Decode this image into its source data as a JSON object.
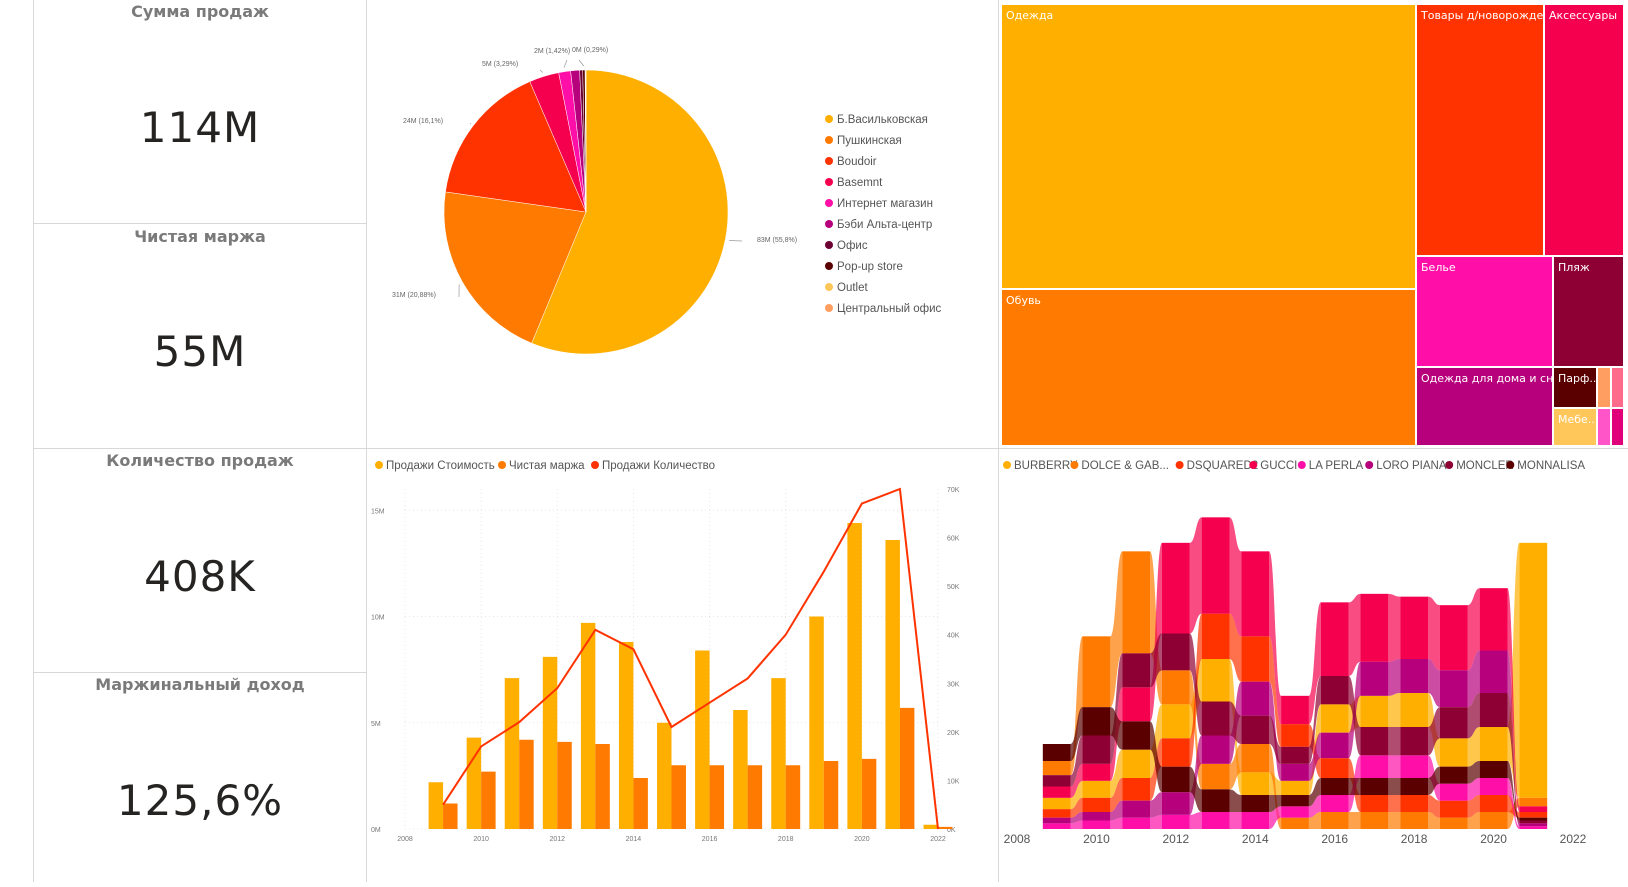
{
  "kpis": [
    {
      "title": "Сумма продаж",
      "value": "114M"
    },
    {
      "title": "Чистая маржа",
      "value": "55M"
    },
    {
      "title": "Количество продаж",
      "value": "408K"
    },
    {
      "title": "Маржинальный доход",
      "value": "125,6%"
    }
  ],
  "colors": {
    "c1": "#FFAF00",
    "c2": "#FF7A00",
    "c3": "#FF3300",
    "c4": "#F5004F",
    "c5": "#FF0FA8",
    "c6": "#B7007C",
    "c7": "#6B0033",
    "c8": "#5A0000",
    "c9": "#FFC659",
    "c10": "#FF9E60"
  },
  "chart_data": [
    {
      "type": "pie",
      "slices": [
        {
          "name": "Б.Васильковская",
          "value": 83,
          "label": "83M (55,8%)",
          "color": "#FFAF00"
        },
        {
          "name": "Пушкинская",
          "value": 31,
          "label": "31M (20,88%)",
          "color": "#FF7A00"
        },
        {
          "name": "Boudoir",
          "value": 24,
          "label": "24M (16,1%)",
          "color": "#FF3300"
        },
        {
          "name": "Basemnt",
          "value": 5,
          "label": "5M (3,29%)",
          "color": "#F5004F"
        },
        {
          "name": "Интернет магазин",
          "value": 2,
          "label": "2M (1,42%)",
          "color": "#FF0FA8"
        },
        {
          "name": "Бэби Альта-центр",
          "value": 1.5,
          "label": "",
          "color": "#B7007C"
        },
        {
          "name": "Офис",
          "value": 0.5,
          "label": "",
          "color": "#6B0033"
        },
        {
          "name": "Pop-up store",
          "value": 0.4,
          "label": "0M (0,29%)",
          "color": "#5A0000"
        },
        {
          "name": "Outlet",
          "value": 0.1,
          "label": "",
          "color": "#FFC659"
        },
        {
          "name": "Центральный офис",
          "value": 0.05,
          "label": "",
          "color": "#FF9E60"
        }
      ],
      "legend_position": "right"
    },
    {
      "type": "treemap",
      "items": [
        {
          "name": "Одежда",
          "color": "#FFAF00"
        },
        {
          "name": "Обувь",
          "color": "#FF7A00"
        },
        {
          "name": "Товары д/новорожде...",
          "color": "#FF3300"
        },
        {
          "name": "Аксессуары",
          "color": "#F5004F"
        },
        {
          "name": "Белье",
          "color": "#FF0FA8"
        },
        {
          "name": "Пляж",
          "color": "#8E0033"
        },
        {
          "name": "Одежда для дома и сна",
          "color": "#B7007C"
        },
        {
          "name": "Парф...",
          "color": "#5A0000"
        },
        {
          "name": "Мебе...",
          "color": "#FFC659"
        }
      ]
    },
    {
      "type": "bar",
      "legend": [
        "Продажи Стоимость",
        "Чистая маржа",
        "Продажи Количество"
      ],
      "legend_colors": [
        "#FFAF00",
        "#FF7A00",
        "#FF3300"
      ],
      "x": [
        2009,
        2010,
        2011,
        2012,
        2013,
        2014,
        2015,
        2016,
        2017,
        2018,
        2019,
        2020,
        2021,
        2022
      ],
      "x_ticks": [
        "2008",
        "2010",
        "2012",
        "2014",
        "2016",
        "2018",
        "2020",
        "2022"
      ],
      "x_range": [
        2008,
        2022
      ],
      "series": [
        {
          "name": "Продажи Стоимость",
          "kind": "bar",
          "values": [
            2.2,
            4.3,
            7.1,
            8.1,
            9.7,
            8.8,
            5.0,
            8.4,
            5.6,
            7.1,
            10.0,
            14.4,
            13.6,
            0.2
          ]
        },
        {
          "name": "Чистая маржа",
          "kind": "bar",
          "values": [
            1.2,
            2.7,
            4.2,
            4.1,
            4.0,
            2.4,
            3.0,
            3.0,
            3.0,
            3.0,
            3.2,
            3.3,
            5.7,
            0.1
          ]
        },
        {
          "name": "Продажи Количество",
          "kind": "line",
          "values": [
            5,
            17,
            22,
            29,
            41,
            37,
            21,
            26,
            31,
            40,
            53,
            67,
            70,
            0
          ]
        }
      ],
      "y_left_ticks": [
        "0M",
        "5M",
        "10M",
        "15M"
      ],
      "y_left_range": [
        0,
        16
      ],
      "y_right_ticks": [
        "0K",
        "10K",
        "20K",
        "30K",
        "40K",
        "50K",
        "60K",
        "70K"
      ],
      "y_right_range": [
        0,
        70
      ]
    },
    {
      "type": "area",
      "subtype": "ribbon",
      "legend": [
        "BURBERRY",
        "DOLCE & GAB...",
        "DSQUARED2",
        "GUCCI",
        "LA PERLA",
        "LORO PIANA",
        "MONCLER",
        "MONNALISA"
      ],
      "legend_colors": [
        "#FFAF00",
        "#FF7A00",
        "#FF3300",
        "#F5004F",
        "#FF0FA8",
        "#B7007C",
        "#8E0033",
        "#5A0000"
      ],
      "x_ticks": [
        "2008",
        "2010",
        "2012",
        "2014",
        "2016",
        "2018",
        "2020",
        "2022"
      ],
      "x_range": [
        2008,
        2022
      ],
      "x": [
        2009,
        2010,
        2011,
        2012,
        2013,
        2014,
        2015,
        2016,
        2017,
        2018,
        2019,
        2020,
        2021
      ],
      "series": [
        {
          "name": "BURBERRY",
          "values": [
            0.4,
            0.6,
            1.0,
            1.2,
            1.5,
            0.8,
            0.5,
            1.0,
            1.1,
            1.2,
            1.0,
            1.2,
            9.0
          ]
        },
        {
          "name": "DOLCE & GAB...",
          "values": [
            0.5,
            2.5,
            3.6,
            1.2,
            0.9,
            1.0,
            0.4,
            0.6,
            0.6,
            0.6,
            0.4,
            0.6,
            0.3
          ]
        },
        {
          "name": "DSQUARED2",
          "values": [
            0.3,
            0.5,
            0.8,
            1.0,
            1.6,
            1.6,
            0.8,
            0.7,
            0.6,
            0.6,
            0.6,
            0.6,
            0.2
          ]
        },
        {
          "name": "GUCCI",
          "values": [
            0.4,
            0.6,
            1.2,
            3.2,
            3.4,
            3.0,
            1.0,
            2.6,
            2.4,
            2.2,
            2.3,
            2.2,
            0.2
          ]
        },
        {
          "name": "LA PERLA",
          "values": [
            0.2,
            0.3,
            0.4,
            0.5,
            0.6,
            0.6,
            0.4,
            0.6,
            0.8,
            0.8,
            0.6,
            0.6,
            0.1
          ]
        },
        {
          "name": "LORO PIANA",
          "values": [
            0.2,
            0.3,
            0.6,
            0.8,
            1.0,
            1.2,
            0.6,
            0.9,
            1.2,
            1.2,
            1.3,
            1.5,
            0.1
          ]
        },
        {
          "name": "MONCLER",
          "values": [
            0.4,
            1.0,
            1.2,
            1.3,
            1.2,
            1.0,
            0.6,
            1.0,
            1.0,
            1.0,
            1.1,
            1.2,
            0.1
          ]
        },
        {
          "name": "MONNALISA",
          "values": [
            0.6,
            1.0,
            1.0,
            0.9,
            0.8,
            0.6,
            0.4,
            0.6,
            0.6,
            0.6,
            0.6,
            0.6,
            0.1
          ]
        }
      ]
    }
  ]
}
